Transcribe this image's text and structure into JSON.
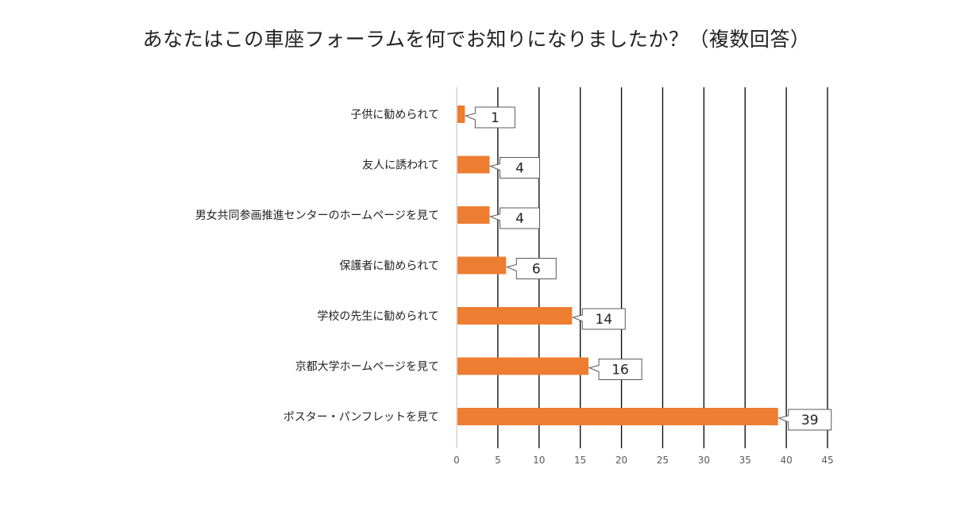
{
  "chart_data": {
    "type": "bar",
    "orientation": "horizontal",
    "title": "あなたはこの車座フォーラムを何でお知りになりましたか？（複数回答）",
    "categories": [
      "子供に勧められて",
      "友人に誘われて",
      "男女共同参画推進センターのホームページを見て",
      "保護者に勧められて",
      "学校の先生に勧められて",
      "京都大学ホームページを見て",
      "ポスター・パンフレットを見て"
    ],
    "values": [
      1,
      4,
      4,
      6,
      14,
      16,
      39
    ],
    "xlim": [
      0,
      45
    ],
    "xticks": [
      "0",
      "5",
      "10",
      "15",
      "20",
      "25",
      "30",
      "35",
      "40",
      "45"
    ],
    "grid": "vertical",
    "legend": "none",
    "bar_color": "#ED7D31",
    "data_labels": "callout"
  }
}
